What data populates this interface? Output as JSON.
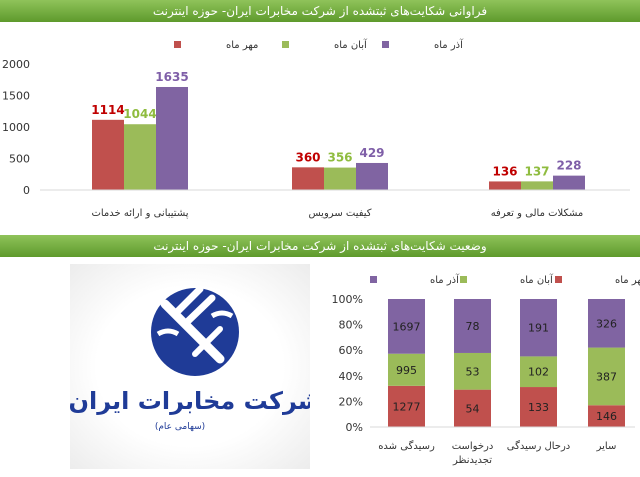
{
  "headers": {
    "top": "فراوانی شکایت‌های ثبتشده از شرکت مخابرات ایران- حوزه اینترنت",
    "bottom": "وضعیت شکایت‌های ثبتشده از شرکت مخابرات ایران- حوزه اینترنت"
  },
  "logo": {
    "text": "شرکت مخابرات ایران",
    "subtext": "(سهامی عام)"
  },
  "chart_data": [
    {
      "type": "bar",
      "categories": [
        "پشتیبانی و ارائه خدمات",
        "کیفیت سرویس",
        "مشکلات مالی و تعرفه"
      ],
      "series": [
        {
          "name": "مهر ماه",
          "values": [
            1114,
            360,
            136
          ],
          "color": "#c0504d",
          "label_color": "#c00000"
        },
        {
          "name": "آبان ماه",
          "values": [
            1044,
            356,
            137
          ],
          "color": "#9bbb59",
          "label_color": "#8fbc3f"
        },
        {
          "name": "آذر ماه",
          "values": [
            1635,
            429,
            228
          ],
          "color": "#8064a2",
          "label_color": "#7f5fa8"
        }
      ],
      "yticks": [
        "2000",
        "1500",
        "1000",
        "500",
        "0"
      ],
      "ylim": [
        0,
        2000
      ],
      "legend": "top"
    },
    {
      "type": "bar",
      "stacked": "percent",
      "categories": [
        "رسیدگی شده",
        "درخواست تجدیدنظر",
        "درحال رسیدگی",
        "سایر"
      ],
      "series": [
        {
          "name": "مهر ماه",
          "values": [
            1277,
            54,
            133,
            146
          ],
          "color": "#c0504d"
        },
        {
          "name": "آبان ماه",
          "values": [
            995,
            53,
            102,
            387
          ],
          "color": "#9bbb59"
        },
        {
          "name": "آذر ماه",
          "values": [
            1697,
            78,
            191,
            326
          ],
          "color": "#8064a2"
        }
      ],
      "yticks": [
        "100%",
        "80%",
        "60%",
        "40%",
        "20%",
        "0%"
      ],
      "ylim": [
        0,
        100
      ],
      "legend": "top"
    }
  ]
}
